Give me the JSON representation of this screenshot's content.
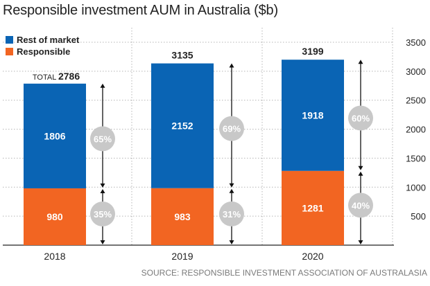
{
  "chart_data": {
    "type": "bar",
    "stacked": true,
    "title": "Responsible investment AUM in Australia ($b)",
    "source": "SOURCE: RESPONSIBLE INVESTMENT ASSOCIATION OF AUSTRALASIA",
    "categories": [
      "2018",
      "2019",
      "2020"
    ],
    "series": [
      {
        "name": "Responsible",
        "color": "#f26522",
        "values": [
          980,
          983,
          1281
        ],
        "share_labels": [
          "35%",
          "31%",
          "40%"
        ]
      },
      {
        "name": "Rest of market",
        "color": "#0a64b4",
        "values": [
          1806,
          2152,
          1918
        ],
        "share_labels": [
          "65%",
          "69%",
          "60%"
        ]
      }
    ],
    "totals": [
      2786,
      3135,
      3199
    ],
    "total_prefix": "TOTAL",
    "ylim": [
      0,
      3500
    ],
    "yticks": [
      500,
      1000,
      1500,
      2000,
      2500,
      3000,
      3500
    ],
    "y_axis_side": "right",
    "grid": true,
    "legend_position": "top-left",
    "badge_color": "#c8c8c8"
  }
}
